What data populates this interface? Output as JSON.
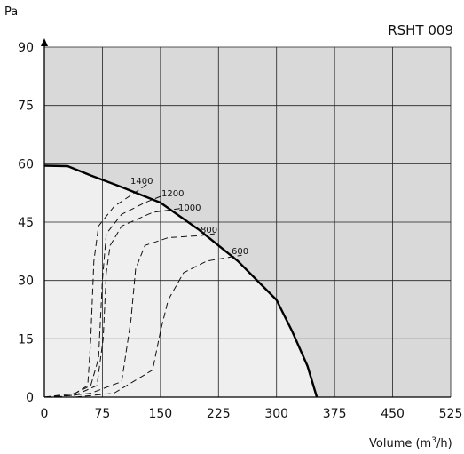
{
  "chart_data": {
    "type": "line",
    "title": "RSHT 009",
    "ylabel": "Pa",
    "xlabel": "Volume (m³/h)",
    "xlim": [
      0,
      525
    ],
    "ylim": [
      0,
      90
    ],
    "xticks": [
      "0",
      "75",
      "150",
      "225",
      "300",
      "375",
      "450",
      "525"
    ],
    "yticks": [
      "0",
      "15",
      "30",
      "45",
      "60",
      "75",
      "90"
    ],
    "grid": true,
    "background_color": "#d9d9d9",
    "operating_area_color": "#efefef",
    "series": [
      {
        "style": "solid",
        "x": [
          0,
          30,
          60,
          100,
          150,
          200,
          250,
          300,
          320,
          340,
          352
        ],
        "y": [
          59.5,
          59.4,
          57,
          54,
          50,
          43,
          35,
          25,
          17,
          8,
          0
        ]
      },
      {
        "label": "1400",
        "style": "dashed",
        "x": [
          0,
          40,
          56,
          60,
          64,
          70,
          90,
          120,
          135
        ],
        "y": [
          0,
          1,
          3,
          15,
          35,
          44,
          49,
          53,
          55
        ]
      },
      {
        "label": "1200",
        "style": "dashed",
        "x": [
          0,
          35,
          60,
          70,
          75,
          80,
          100,
          130,
          155
        ],
        "y": [
          0,
          0.5,
          3,
          10,
          30,
          42,
          47,
          50,
          52
        ]
      },
      {
        "label": "1000",
        "style": "dashed",
        "x": [
          0,
          40,
          68,
          76,
          80,
          85,
          100,
          140,
          175
        ],
        "y": [
          0,
          0.5,
          3,
          15,
          32,
          39,
          44,
          47.5,
          48.5
        ]
      },
      {
        "label": "800",
        "style": "dashed",
        "x": [
          15,
          60,
          100,
          112,
          118,
          130,
          160,
          200,
          220
        ],
        "y": [
          0,
          1,
          4,
          20,
          33,
          39,
          41,
          41.5,
          42
        ]
      },
      {
        "label": "600",
        "style": "dashed",
        "x": [
          40,
          90,
          140,
          150,
          160,
          180,
          210,
          240,
          255
        ],
        "y": [
          0,
          1,
          7,
          17,
          25,
          32,
          35,
          36,
          36.5
        ]
      }
    ],
    "annotations": [
      "1400",
      "1200",
      "1000",
      "800",
      "600"
    ]
  }
}
